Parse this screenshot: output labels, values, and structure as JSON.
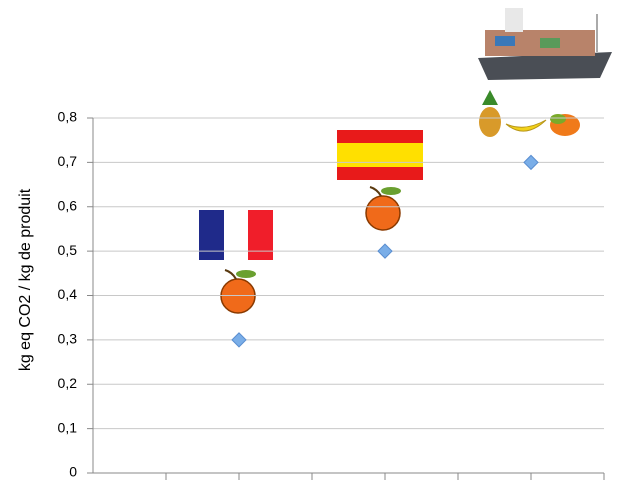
{
  "chart_data": {
    "type": "scatter",
    "y_label": "kg eq  CO2 / kg de produit",
    "categories": [
      null,
      null,
      null
    ],
    "values": [
      0.3,
      0.5,
      0.7
    ],
    "color": "#7aaee8",
    "ylim": [
      0,
      0.8
    ],
    "yticks": [
      0,
      {
        "value": 0.1,
        "label": "0,1"
      },
      {
        "value": 0.2,
        "label": "0,2"
      },
      {
        "value": 0.3,
        "label": "0,3"
      },
      {
        "value": 0.4,
        "label": "0,4"
      },
      {
        "value": 0.5,
        "label": "0,5"
      },
      {
        "value": 0.6,
        "label": "0,6"
      },
      {
        "value": 0.7,
        "label": "0,7"
      },
      {
        "value": 0.8,
        "label": "0,8"
      }
    ],
    "grid": true
  }
}
